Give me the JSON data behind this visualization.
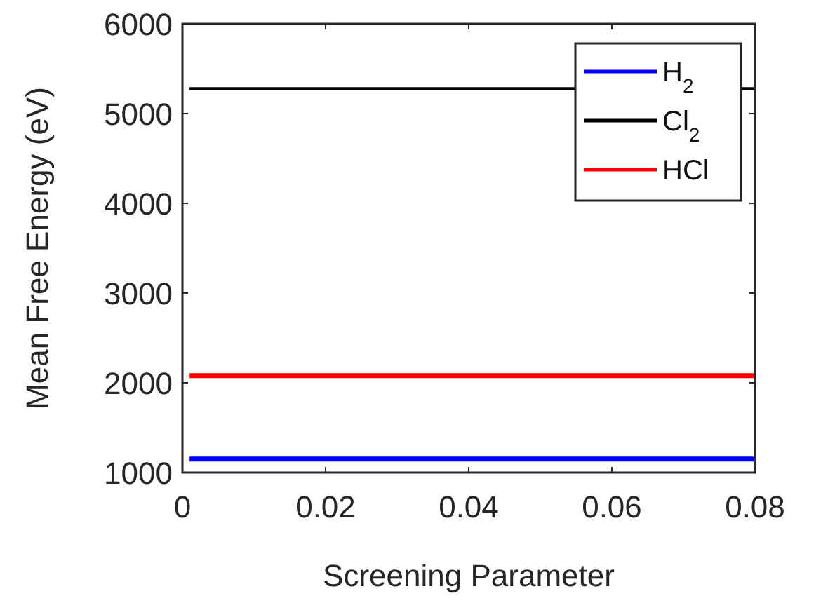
{
  "chart_data": {
    "type": "line",
    "xlabel": "Screening Parameter",
    "ylabel": "Mean Free Energy (eV)",
    "x": [
      0.001,
      0.08
    ],
    "series": [
      {
        "name": "H$_{2}$",
        "color": "#0000ff",
        "values": [
          1150,
          1150
        ]
      },
      {
        "name": "Cl$_{2}$",
        "color": "#000000",
        "values": [
          5280,
          5280
        ]
      },
      {
        "name": "HCl",
        "color": "#ff0000",
        "values": [
          2080,
          2080
        ]
      }
    ],
    "xlim": [
      0,
      0.08
    ],
    "xticks": [
      0,
      0.02,
      0.04,
      0.06,
      0.08
    ],
    "ylim": [
      1000,
      6000
    ],
    "yticks": [
      1000,
      2000,
      3000,
      4000,
      5000,
      6000
    ],
    "legend": "top right",
    "grid": false,
    "marker": "none",
    "line_style": "solid"
  }
}
